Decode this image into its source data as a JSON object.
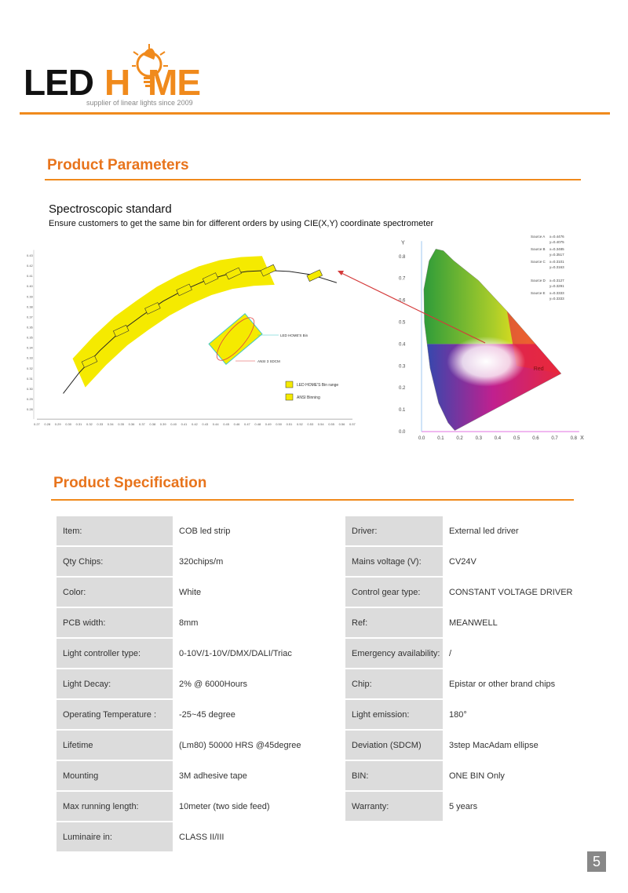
{
  "logo": {
    "text_left": "LED",
    "text_h": "H",
    "text_right": "ME",
    "tagline": "supplier of linear lights since 2009",
    "brand_color": "#f08a1c"
  },
  "parameters": {
    "title": "Product Parameters",
    "subtitle": "Spectroscopic standard",
    "description": "Ensure customers to get the same bin for different orders by using CIE(X,Y) coordinate spectrometer"
  },
  "bin_chart": {
    "y_ticks": [
      "0.43",
      "0.42",
      "0.41",
      "0.40",
      "0.39",
      "0.38",
      "0.37",
      "0.36",
      "0.35",
      "0.34",
      "0.33",
      "0.32",
      "0.31",
      "0.30",
      "0.29",
      "0.28"
    ],
    "x_ticks": [
      "0.27",
      "0.28",
      "0.29",
      "0.30",
      "0.31",
      "0.32",
      "0.33",
      "0.34",
      "0.35",
      "0.36",
      "0.37",
      "0.38",
      "0.39",
      "0.40",
      "0.41",
      "0.42",
      "0.43",
      "0.44",
      "0.45",
      "0.46",
      "0.47",
      "0.48",
      "0.49",
      "0.50",
      "0.51",
      "0.52",
      "0.53",
      "0.54",
      "0.55",
      "0.56",
      "0.57"
    ],
    "bin_label": "LED HOME'S Bin",
    "sdcm_label": "ANSI 3 SDCM",
    "legend": [
      {
        "label": "LED HOME'S Bin range"
      },
      {
        "label": "ANSI Binning"
      }
    ]
  },
  "cie_chart": {
    "x_axis": "X",
    "y_axis": "Y",
    "x_ticks": [
      "0.0",
      "0.1",
      "0.2",
      "0.3",
      "0.4",
      "0.5",
      "0.6",
      "0.7",
      "0.8"
    ],
    "y_ticks": [
      "0.0",
      "0.1",
      "0.2",
      "0.3",
      "0.4",
      "0.5",
      "0.6",
      "0.7",
      "0.8"
    ],
    "region_label": "Red",
    "sources": [
      {
        "name": "Source A",
        "x": "x=0.4476",
        "y": "y=0.4075"
      },
      {
        "name": "Source B",
        "x": "x=0.3485",
        "y": "y=0.3517"
      },
      {
        "name": "Source C",
        "x": "x=0.3101",
        "y": "y=0.3163"
      },
      {
        "name": "Source D",
        "x": "x=0.3127",
        "y": "y=0.3291"
      },
      {
        "name": "Source E",
        "x": "x=0.3333",
        "y": "y=0.3333"
      }
    ]
  },
  "specification": {
    "title": "Product Specification",
    "rows": [
      {
        "l1": "Item:",
        "v1": "COB led strip",
        "l2": "Driver:",
        "v2": "External  led driver"
      },
      {
        "l1": "Qty Chips:",
        "v1": "320chips/m",
        "l2": "Mains voltage (V):",
        "v2": "CV24V"
      },
      {
        "l1": "Color:",
        "v1": "White",
        "l2": "Control gear type:",
        "v2": "CONSTANT VOLTAGE DRIVER"
      },
      {
        "l1": "PCB width:",
        "v1": "8mm",
        "l2": "Ref:",
        "v2": "MEANWELL"
      },
      {
        "l1": "Light controller type:",
        "v1": "0-10V/1-10V/DMX/DALI/Triac",
        "l2": "Emergency availability:",
        "v2": "/"
      },
      {
        "l1": "Light Decay:",
        "v1": "2% @ 6000Hours",
        "l2": "Chip:",
        "v2": "Epistar or other brand chips"
      },
      {
        "l1": "Operating Temperature :",
        "v1": "-25~45 degree",
        "l2": "Light emission:",
        "v2": "180°"
      },
      {
        "l1": "Lifetime",
        "v1": "(Lm80) 50000 HRS @45degree",
        "l2": "Deviation (SDCM)",
        "v2": "3step MacAdam ellipse"
      },
      {
        "l1": "Mounting",
        "v1": "3M adhesive tape",
        "l2": "BIN:",
        "v2": "ONE BIN Only"
      },
      {
        "l1": "Max running length:",
        "v1": "10meter (two side feed)",
        "l2": "Warranty:",
        "v2": "5 years"
      },
      {
        "l1": "Luminaire in:",
        "v1": "CLASS II/III",
        "l2": "",
        "v2": ""
      }
    ]
  },
  "page_number": "5"
}
